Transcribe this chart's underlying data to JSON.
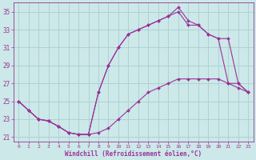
{
  "xlabel": "Windchill (Refroidissement éolien,°C)",
  "bg_color": "#cce8e8",
  "grid_color": "#aacfcf",
  "line_color": "#993399",
  "xlim": [
    -0.5,
    23.5
  ],
  "ylim": [
    20.5,
    36.0
  ],
  "yticks": [
    21,
    23,
    25,
    27,
    29,
    31,
    33,
    35
  ],
  "xticks": [
    0,
    1,
    2,
    3,
    4,
    5,
    6,
    7,
    8,
    9,
    10,
    11,
    12,
    13,
    14,
    15,
    16,
    17,
    18,
    19,
    20,
    21,
    22,
    23
  ],
  "line1_x": [
    0,
    1,
    2,
    3,
    4,
    5,
    6,
    7,
    8,
    9,
    10,
    11,
    12,
    13,
    14,
    15,
    16,
    17,
    18,
    19,
    20,
    21,
    22,
    23
  ],
  "line1_y": [
    25.0,
    24.0,
    23.0,
    22.8,
    22.2,
    21.5,
    21.3,
    21.3,
    21.5,
    22.0,
    23.0,
    24.0,
    25.0,
    26.0,
    26.5,
    27.0,
    27.5,
    27.5,
    27.5,
    27.5,
    27.5,
    27.0,
    26.5,
    26.0
  ],
  "line2_x": [
    0,
    1,
    2,
    3,
    4,
    5,
    6,
    7,
    8,
    9,
    10,
    11,
    12,
    13,
    14,
    15,
    16,
    17,
    18,
    19,
    20,
    21,
    22,
    23
  ],
  "line2_y": [
    25.0,
    24.0,
    23.0,
    22.8,
    22.2,
    21.5,
    21.3,
    21.3,
    26.0,
    29.0,
    31.0,
    32.5,
    33.0,
    33.5,
    34.0,
    34.5,
    35.0,
    33.5,
    33.5,
    32.5,
    32.0,
    27.0,
    27.0,
    26.0
  ],
  "line3_x": [
    0,
    1,
    2,
    3,
    4,
    5,
    6,
    7,
    8,
    9,
    10,
    11,
    12,
    13,
    14,
    15,
    16,
    17,
    18,
    19,
    20,
    21,
    22,
    23
  ],
  "line3_y": [
    25.0,
    24.0,
    23.0,
    22.8,
    22.2,
    21.5,
    21.3,
    21.3,
    26.0,
    29.0,
    31.0,
    32.5,
    33.0,
    33.5,
    34.0,
    34.5,
    35.5,
    34.0,
    33.5,
    32.5,
    32.0,
    32.0,
    27.0,
    26.0
  ]
}
